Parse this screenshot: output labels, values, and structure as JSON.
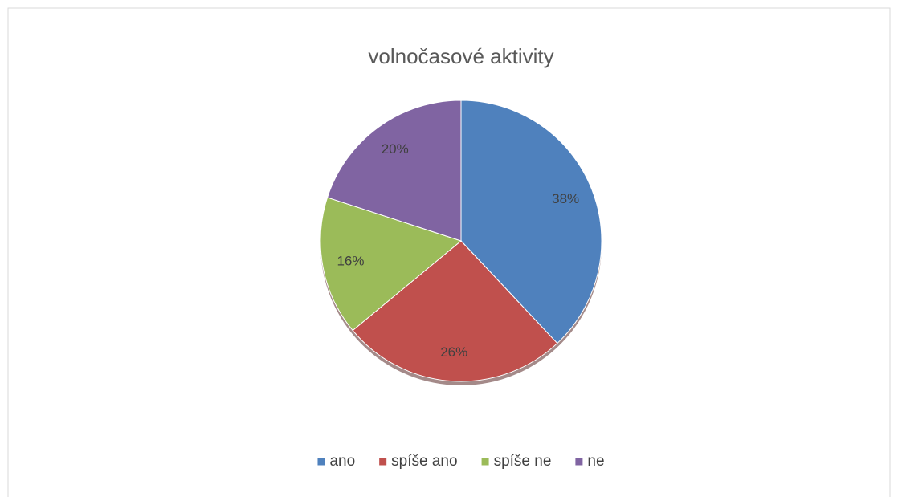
{
  "chart_data": {
    "type": "pie",
    "title": "volnočasové aktivity",
    "categories": [
      "ano",
      "spíše ano",
      "spíše ne",
      "ne"
    ],
    "values": [
      38,
      26,
      16,
      20
    ],
    "value_labels": [
      "38%",
      "26%",
      "16%",
      "20%"
    ],
    "colors": [
      "#4f81bd",
      "#c0504d",
      "#9bbb59",
      "#8064a2"
    ],
    "legend": "bottom"
  }
}
